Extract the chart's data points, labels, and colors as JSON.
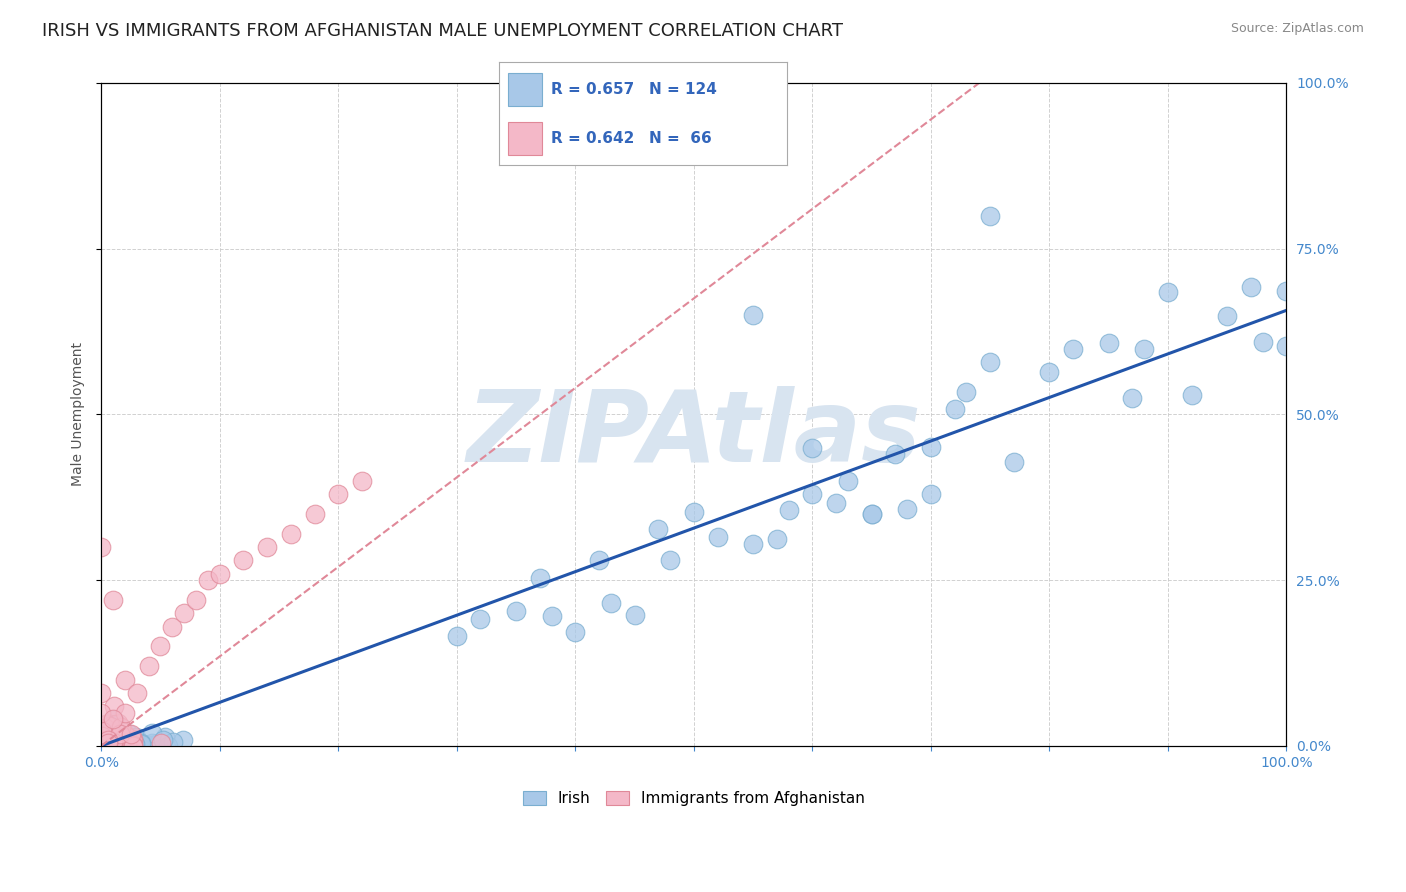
{
  "title": "IRISH VS IMMIGRANTS FROM AFGHANISTAN MALE UNEMPLOYMENT CORRELATION CHART",
  "source": "Source: ZipAtlas.com",
  "ylabel": "Male Unemployment",
  "ytick_values": [
    0.0,
    0.25,
    0.5,
    0.75,
    1.0
  ],
  "ytick_labels": [
    "0.0%",
    "25.0%",
    "50.0%",
    "75.0%",
    "100.0%"
  ],
  "irish_R": 0.657,
  "irish_N": 124,
  "afghan_R": 0.642,
  "afghan_N": 66,
  "irish_color": "#a8c8e8",
  "irish_edge_color": "#7aaed0",
  "afghan_color": "#f4b8c8",
  "afghan_edge_color": "#e08898",
  "irish_line_color": "#2255aa",
  "afghan_line_color": "#e08898",
  "background_color": "#ffffff",
  "grid_color": "#cccccc",
  "watermark_color": "#d8e4f0",
  "title_fontsize": 13,
  "tick_fontsize": 10,
  "legend_fontsize": 11,
  "irish_slope": 0.657,
  "irish_intercept": 0.0,
  "afghan_slope": 1.35,
  "afghan_intercept": 0.0
}
